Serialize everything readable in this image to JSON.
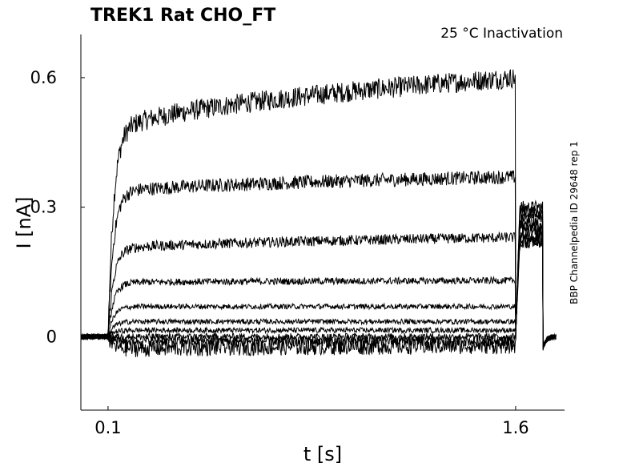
{
  "chart_data": {
    "type": "line",
    "title": "TREK1  Rat  CHO_FT",
    "subtitle": "25 °C  Inactivation",
    "side_label": "BBP Channelpedia ID 29648 rep 1",
    "xlabel": "t [s]",
    "ylabel": "I [nA]",
    "xlim": [
      0.0,
      1.78
    ],
    "ylim": [
      -0.17,
      0.7
    ],
    "xticks": [
      0.1,
      1.6
    ],
    "xtick_labels": [
      "0.1",
      "1.6"
    ],
    "yticks": [
      0,
      0.3,
      0.6
    ],
    "ytick_labels": [
      "0",
      "0.3",
      "0.6"
    ],
    "grid": false,
    "stimulus": {
      "step_on": 0.1,
      "step_off": 1.6,
      "tail_end": 1.7
    },
    "series": [
      {
        "baseline": 0.0,
        "step_start": 0.46,
        "step_end": 0.6,
        "tail": 0.3,
        "noise": 0.012
      },
      {
        "baseline": 0.0,
        "step_start": 0.33,
        "step_end": 0.37,
        "tail": 0.29,
        "noise": 0.008
      },
      {
        "baseline": 0.0,
        "step_start": 0.2,
        "step_end": 0.23,
        "tail": 0.28,
        "noise": 0.006
      },
      {
        "baseline": 0.0,
        "step_start": 0.125,
        "step_end": 0.13,
        "tail": 0.27,
        "noise": 0.004
      },
      {
        "baseline": 0.0,
        "step_start": 0.07,
        "step_end": 0.07,
        "tail": 0.26,
        "noise": 0.003
      },
      {
        "baseline": 0.0,
        "step_start": 0.035,
        "step_end": 0.035,
        "tail": 0.25,
        "noise": 0.003
      },
      {
        "baseline": 0.0,
        "step_start": 0.015,
        "step_end": 0.015,
        "tail": 0.24,
        "noise": 0.003
      },
      {
        "baseline": 0.0,
        "step_start": 0.0,
        "step_end": 0.0,
        "tail": 0.23,
        "noise": 0.004
      },
      {
        "baseline": 0.0,
        "step_start": -0.01,
        "step_end": -0.01,
        "tail": 0.22,
        "noise": 0.006
      },
      {
        "baseline": 0.0,
        "step_start": -0.03,
        "step_end": -0.02,
        "tail": 0.22,
        "noise": 0.01
      }
    ]
  }
}
